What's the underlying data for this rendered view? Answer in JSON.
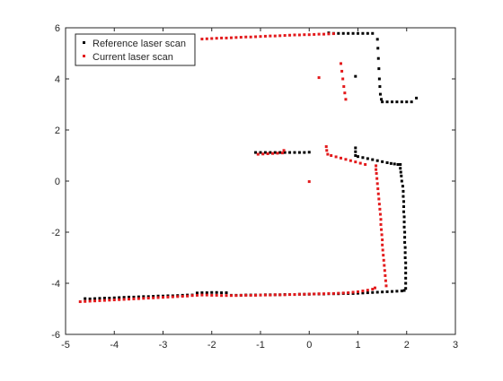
{
  "chart_data": {
    "type": "scatter",
    "title": "",
    "xlabel": "",
    "ylabel": "",
    "xlim": [
      -5,
      3
    ],
    "ylim": [
      -6,
      6
    ],
    "x_ticks": [
      -5,
      -4,
      -3,
      -2,
      -1,
      0,
      1,
      2,
      3
    ],
    "y_ticks": [
      -6,
      -4,
      -2,
      0,
      2,
      4,
      6
    ],
    "grid": false,
    "legend_position": "top-left",
    "series": [
      {
        "name": "Reference laser scan",
        "color": "#000000",
        "points": [
          [
            -4.6,
            -4.6
          ],
          [
            -4.5,
            -4.61
          ],
          [
            -4.4,
            -4.6
          ],
          [
            -4.3,
            -4.59
          ],
          [
            -4.2,
            -4.58
          ],
          [
            -4.1,
            -4.58
          ],
          [
            -4.0,
            -4.57
          ],
          [
            -3.9,
            -4.56
          ],
          [
            -3.8,
            -4.55
          ],
          [
            -3.7,
            -4.54
          ],
          [
            -3.6,
            -4.54
          ],
          [
            -3.5,
            -4.53
          ],
          [
            -3.4,
            -4.52
          ],
          [
            -3.3,
            -4.52
          ],
          [
            -3.2,
            -4.51
          ],
          [
            -3.1,
            -4.5
          ],
          [
            -3.0,
            -4.5
          ],
          [
            -2.9,
            -4.49
          ],
          [
            -2.8,
            -4.49
          ],
          [
            -2.7,
            -4.48
          ],
          [
            -2.6,
            -4.47
          ],
          [
            -2.5,
            -4.46
          ],
          [
            -2.4,
            -4.46
          ],
          [
            -2.3,
            -4.38
          ],
          [
            -2.2,
            -4.37
          ],
          [
            -2.1,
            -4.37
          ],
          [
            -2.0,
            -4.36
          ],
          [
            -1.9,
            -4.36
          ],
          [
            -1.8,
            -4.37
          ],
          [
            -1.7,
            -4.37
          ],
          [
            -1.6,
            -4.47
          ],
          [
            -1.5,
            -4.47
          ],
          [
            -1.4,
            -4.47
          ],
          [
            -1.3,
            -4.46
          ],
          [
            -1.2,
            -4.46
          ],
          [
            -1.1,
            -4.46
          ],
          [
            -1.0,
            -4.46
          ],
          [
            -0.9,
            -4.45
          ],
          [
            -0.8,
            -4.45
          ],
          [
            -0.7,
            -4.45
          ],
          [
            -0.6,
            -4.45
          ],
          [
            -0.5,
            -4.44
          ],
          [
            -0.4,
            -4.44
          ],
          [
            -0.3,
            -4.44
          ],
          [
            -0.2,
            -4.43
          ],
          [
            -0.1,
            -4.43
          ],
          [
            0.0,
            -4.43
          ],
          [
            0.1,
            -4.42
          ],
          [
            0.2,
            -4.42
          ],
          [
            0.3,
            -4.42
          ],
          [
            0.4,
            -4.41
          ],
          [
            0.5,
            -4.41
          ],
          [
            0.6,
            -4.41
          ],
          [
            0.7,
            -4.4
          ],
          [
            0.8,
            -4.4
          ],
          [
            0.9,
            -4.4
          ],
          [
            1.0,
            -4.39
          ],
          [
            1.1,
            -4.38
          ],
          [
            1.2,
            -4.37
          ],
          [
            1.3,
            -4.36
          ],
          [
            1.4,
            -4.35
          ],
          [
            1.5,
            -4.34
          ],
          [
            1.6,
            -4.33
          ],
          [
            1.7,
            -4.32
          ],
          [
            1.8,
            -4.31
          ],
          [
            1.9,
            -4.3
          ],
          [
            1.95,
            -4.28
          ],
          [
            1.98,
            -4.2
          ],
          [
            1.98,
            -4.0
          ],
          [
            1.98,
            -3.8
          ],
          [
            1.98,
            -3.6
          ],
          [
            1.98,
            -3.4
          ],
          [
            1.98,
            -3.2
          ],
          [
            1.97,
            -3.0
          ],
          [
            1.97,
            -2.8
          ],
          [
            1.97,
            -2.6
          ],
          [
            1.96,
            -2.4
          ],
          [
            1.96,
            -2.2
          ],
          [
            1.96,
            -2.0
          ],
          [
            1.95,
            -1.8
          ],
          [
            1.95,
            -1.6
          ],
          [
            1.95,
            -1.4
          ],
          [
            1.94,
            -1.2
          ],
          [
            1.94,
            -1.0
          ],
          [
            1.94,
            -0.8
          ],
          [
            1.93,
            -0.6
          ],
          [
            1.93,
            -0.4
          ],
          [
            1.92,
            -0.2
          ],
          [
            1.9,
            0.0
          ],
          [
            1.89,
            0.2
          ],
          [
            1.88,
            0.35
          ],
          [
            1.87,
            0.5
          ],
          [
            1.87,
            0.65
          ],
          [
            1.82,
            0.65
          ],
          [
            1.75,
            0.67
          ],
          [
            1.68,
            0.69
          ],
          [
            1.6,
            0.72
          ],
          [
            1.5,
            0.76
          ],
          [
            1.4,
            0.8
          ],
          [
            1.3,
            0.84
          ],
          [
            1.2,
            0.88
          ],
          [
            1.1,
            0.92
          ],
          [
            1.0,
            0.96
          ],
          [
            0.95,
            1.0
          ],
          [
            0.95,
            1.15
          ],
          [
            0.95,
            1.3
          ],
          [
            -1.1,
            1.12
          ],
          [
            -1.0,
            1.12
          ],
          [
            -0.9,
            1.12
          ],
          [
            -0.8,
            1.12
          ],
          [
            -0.7,
            1.12
          ],
          [
            -0.6,
            1.12
          ],
          [
            -0.5,
            1.12
          ],
          [
            -0.4,
            1.12
          ],
          [
            -0.3,
            1.12
          ],
          [
            -0.2,
            1.12
          ],
          [
            -0.1,
            1.12
          ],
          [
            0.0,
            1.13
          ],
          [
            0.4,
            5.8
          ],
          [
            0.5,
            5.78
          ],
          [
            0.6,
            5.78
          ],
          [
            0.7,
            5.78
          ],
          [
            0.8,
            5.78
          ],
          [
            0.9,
            5.78
          ],
          [
            1.0,
            5.78
          ],
          [
            1.1,
            5.78
          ],
          [
            1.2,
            5.78
          ],
          [
            1.3,
            5.78
          ],
          [
            1.4,
            5.55
          ],
          [
            1.41,
            5.2
          ],
          [
            1.42,
            4.8
          ],
          [
            1.43,
            4.4
          ],
          [
            1.44,
            4.0
          ],
          [
            1.45,
            3.7
          ],
          [
            1.46,
            3.4
          ],
          [
            1.48,
            3.2
          ],
          [
            1.5,
            3.1
          ],
          [
            1.6,
            3.1
          ],
          [
            1.7,
            3.1
          ],
          [
            1.8,
            3.1
          ],
          [
            1.9,
            3.1
          ],
          [
            2.0,
            3.1
          ],
          [
            2.1,
            3.1
          ],
          [
            2.2,
            3.25
          ],
          [
            0.95,
            4.1
          ]
        ]
      },
      {
        "name": "Current laser scan",
        "color": "#e31a1c",
        "points": [
          [
            -4.7,
            -4.72
          ],
          [
            -4.6,
            -4.71
          ],
          [
            -4.5,
            -4.7
          ],
          [
            -4.4,
            -4.69
          ],
          [
            -4.3,
            -4.68
          ],
          [
            -4.2,
            -4.67
          ],
          [
            -4.1,
            -4.66
          ],
          [
            -4.0,
            -4.65
          ],
          [
            -3.9,
            -4.64
          ],
          [
            -3.8,
            -4.63
          ],
          [
            -3.7,
            -4.62
          ],
          [
            -3.6,
            -4.61
          ],
          [
            -3.5,
            -4.6
          ],
          [
            -3.4,
            -4.59
          ],
          [
            -3.3,
            -4.58
          ],
          [
            -3.2,
            -4.57
          ],
          [
            -3.1,
            -4.56
          ],
          [
            -3.0,
            -4.55
          ],
          [
            -2.9,
            -4.54
          ],
          [
            -2.8,
            -4.53
          ],
          [
            -2.7,
            -4.52
          ],
          [
            -2.6,
            -4.51
          ],
          [
            -2.5,
            -4.5
          ],
          [
            -2.4,
            -4.48
          ],
          [
            -2.3,
            -4.47
          ],
          [
            -2.2,
            -4.46
          ],
          [
            -2.1,
            -4.46
          ],
          [
            -2.0,
            -4.47
          ],
          [
            -1.9,
            -4.47
          ],
          [
            -1.8,
            -4.48
          ],
          [
            -1.7,
            -4.48
          ],
          [
            -1.6,
            -4.48
          ],
          [
            -1.5,
            -4.48
          ],
          [
            -1.4,
            -4.47
          ],
          [
            -1.3,
            -4.47
          ],
          [
            -1.2,
            -4.47
          ],
          [
            -1.1,
            -4.47
          ],
          [
            -1.0,
            -4.46
          ],
          [
            -0.9,
            -4.46
          ],
          [
            -0.8,
            -4.46
          ],
          [
            -0.7,
            -4.45
          ],
          [
            -0.6,
            -4.45
          ],
          [
            -0.5,
            -4.45
          ],
          [
            -0.4,
            -4.44
          ],
          [
            -0.3,
            -4.44
          ],
          [
            -0.2,
            -4.43
          ],
          [
            -0.1,
            -4.43
          ],
          [
            0.0,
            -4.42
          ],
          [
            0.1,
            -4.42
          ],
          [
            0.2,
            -4.41
          ],
          [
            0.3,
            -4.41
          ],
          [
            0.4,
            -4.4
          ],
          [
            0.5,
            -4.4
          ],
          [
            0.6,
            -4.39
          ],
          [
            0.7,
            -4.38
          ],
          [
            0.8,
            -4.37
          ],
          [
            0.9,
            -4.35
          ],
          [
            1.0,
            -4.33
          ],
          [
            1.1,
            -4.3
          ],
          [
            1.2,
            -4.27
          ],
          [
            1.3,
            -4.23
          ],
          [
            1.35,
            -4.18
          ],
          [
            1.58,
            -4.1
          ],
          [
            1.57,
            -3.9
          ],
          [
            1.56,
            -3.7
          ],
          [
            1.55,
            -3.5
          ],
          [
            1.54,
            -3.3
          ],
          [
            1.53,
            -3.1
          ],
          [
            1.52,
            -2.9
          ],
          [
            1.51,
            -2.7
          ],
          [
            1.5,
            -2.5
          ],
          [
            1.5,
            -2.3
          ],
          [
            1.49,
            -2.1
          ],
          [
            1.48,
            -1.9
          ],
          [
            1.47,
            -1.7
          ],
          [
            1.47,
            -1.5
          ],
          [
            1.46,
            -1.3
          ],
          [
            1.45,
            -1.1
          ],
          [
            1.44,
            -0.9
          ],
          [
            1.43,
            -0.7
          ],
          [
            1.42,
            -0.5
          ],
          [
            1.41,
            -0.3
          ],
          [
            1.4,
            -0.1
          ],
          [
            1.39,
            0.1
          ],
          [
            1.38,
            0.3
          ],
          [
            1.37,
            0.45
          ],
          [
            1.37,
            0.6
          ],
          [
            1.15,
            0.65
          ],
          [
            1.05,
            0.7
          ],
          [
            0.95,
            0.75
          ],
          [
            0.85,
            0.8
          ],
          [
            0.75,
            0.85
          ],
          [
            0.65,
            0.9
          ],
          [
            0.55,
            0.95
          ],
          [
            0.45,
            1.0
          ],
          [
            0.38,
            1.05
          ],
          [
            0.36,
            1.2
          ],
          [
            0.35,
            1.35
          ],
          [
            -1.05,
            1.05
          ],
          [
            -0.95,
            1.06
          ],
          [
            -0.85,
            1.07
          ],
          [
            -0.75,
            1.08
          ],
          [
            -0.65,
            1.09
          ],
          [
            -0.55,
            1.1
          ],
          [
            -0.52,
            1.2
          ],
          [
            0.0,
            -0.02
          ],
          [
            -2.2,
            5.56
          ],
          [
            -2.1,
            5.57
          ],
          [
            -2.0,
            5.58
          ],
          [
            -1.9,
            5.59
          ],
          [
            -1.8,
            5.6
          ],
          [
            -1.7,
            5.6
          ],
          [
            -1.6,
            5.61
          ],
          [
            -1.5,
            5.62
          ],
          [
            -1.4,
            5.63
          ],
          [
            -1.3,
            5.64
          ],
          [
            -1.2,
            5.64
          ],
          [
            -1.1,
            5.65
          ],
          [
            -1.0,
            5.66
          ],
          [
            -0.9,
            5.67
          ],
          [
            -0.8,
            5.68
          ],
          [
            -0.7,
            5.68
          ],
          [
            -0.6,
            5.69
          ],
          [
            -0.5,
            5.7
          ],
          [
            -0.4,
            5.71
          ],
          [
            -0.3,
            5.72
          ],
          [
            -0.2,
            5.72
          ],
          [
            -0.1,
            5.73
          ],
          [
            0.0,
            5.73
          ],
          [
            0.1,
            5.74
          ],
          [
            0.2,
            5.75
          ],
          [
            0.3,
            5.75
          ],
          [
            0.4,
            5.76
          ],
          [
            0.5,
            5.77
          ],
          [
            0.65,
            4.6
          ],
          [
            0.67,
            4.3
          ],
          [
            0.69,
            4.0
          ],
          [
            0.71,
            3.7
          ],
          [
            0.73,
            3.45
          ],
          [
            0.75,
            3.2
          ],
          [
            0.2,
            4.05
          ]
        ]
      }
    ]
  }
}
